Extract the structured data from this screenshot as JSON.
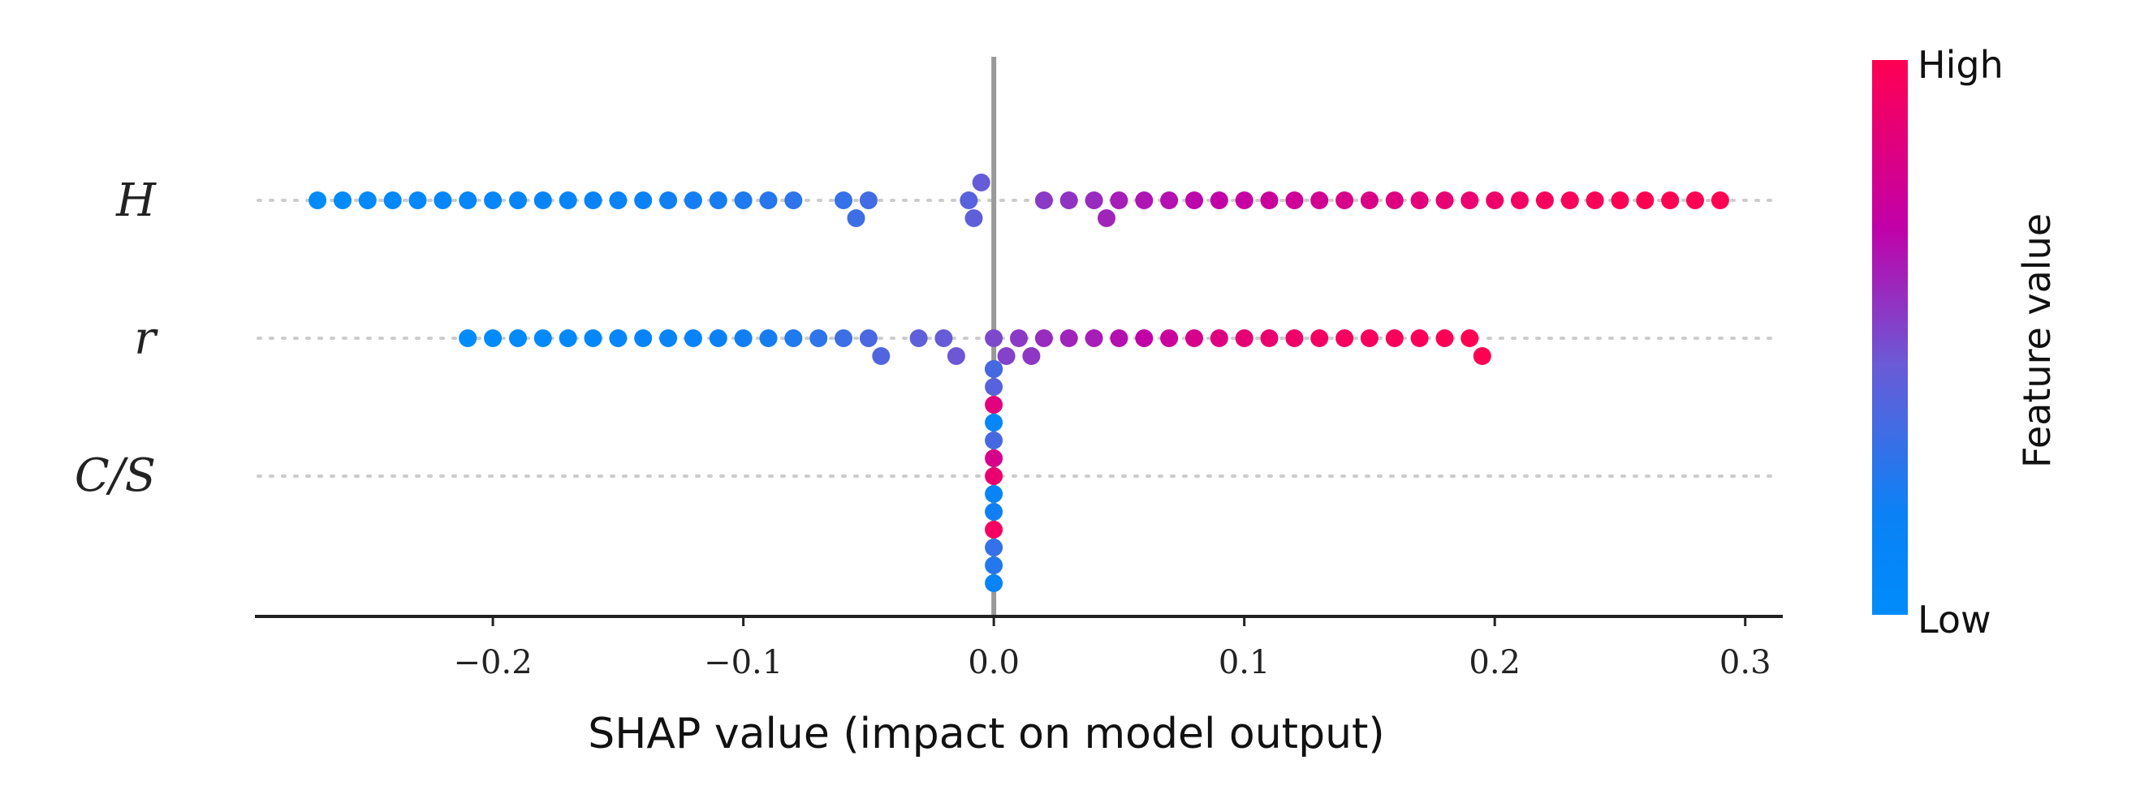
{
  "chart_data": {
    "type": "scatter",
    "subtype": "shap-beeswarm",
    "title": "",
    "xlabel": "SHAP value (impact on model output)",
    "ylabel": "",
    "xlim": [
      -0.295,
      0.315
    ],
    "xticks": [
      -0.2,
      -0.1,
      0.0,
      0.1,
      0.2,
      0.3
    ],
    "xtick_labels": [
      "−0.2",
      "−0.1",
      "0.0",
      "0.1",
      "0.2",
      "0.3"
    ],
    "features": [
      "H",
      "r",
      "C/S"
    ],
    "feature_labels": [
      "H",
      "r",
      "C/S"
    ],
    "colorbar": {
      "title": "Feature value",
      "high_label": "High",
      "low_label": "Low",
      "low_color": "#008bfb",
      "high_color": "#ff0052"
    },
    "series": [
      {
        "name": "H",
        "points": [
          [
            -0.27,
            0.0
          ],
          [
            -0.26,
            0.02
          ],
          [
            -0.25,
            0.05
          ],
          [
            -0.24,
            0.06
          ],
          [
            -0.23,
            0.08
          ],
          [
            -0.22,
            0.09
          ],
          [
            -0.21,
            0.1
          ],
          [
            -0.2,
            0.11
          ],
          [
            -0.19,
            0.12
          ],
          [
            -0.18,
            0.13
          ],
          [
            -0.17,
            0.14
          ],
          [
            -0.16,
            0.16
          ],
          [
            -0.15,
            0.17
          ],
          [
            -0.14,
            0.18
          ],
          [
            -0.13,
            0.2
          ],
          [
            -0.12,
            0.21
          ],
          [
            -0.11,
            0.22
          ],
          [
            -0.1,
            0.24
          ],
          [
            -0.09,
            0.26
          ],
          [
            -0.08,
            0.28
          ],
          [
            -0.06,
            0.3
          ],
          [
            -0.055,
            0.32
          ],
          [
            -0.05,
            0.34
          ],
          [
            -0.01,
            0.4
          ],
          [
            -0.008,
            0.42
          ],
          [
            -0.005,
            0.44
          ],
          [
            0.02,
            0.54
          ],
          [
            0.03,
            0.56
          ],
          [
            0.04,
            0.58
          ],
          [
            0.045,
            0.6
          ],
          [
            0.05,
            0.62
          ],
          [
            0.06,
            0.64
          ],
          [
            0.07,
            0.66
          ],
          [
            0.08,
            0.68
          ],
          [
            0.09,
            0.7
          ],
          [
            0.1,
            0.72
          ],
          [
            0.11,
            0.74
          ],
          [
            0.12,
            0.76
          ],
          [
            0.13,
            0.78
          ],
          [
            0.14,
            0.8
          ],
          [
            0.15,
            0.82
          ],
          [
            0.16,
            0.84
          ],
          [
            0.17,
            0.86
          ],
          [
            0.18,
            0.88
          ],
          [
            0.19,
            0.9
          ],
          [
            0.2,
            0.92
          ],
          [
            0.21,
            0.94
          ],
          [
            0.22,
            0.96
          ],
          [
            0.23,
            0.97
          ],
          [
            0.24,
            0.98
          ],
          [
            0.25,
            0.99
          ],
          [
            0.26,
            1.0
          ],
          [
            0.27,
            1.0
          ],
          [
            0.28,
            1.0
          ],
          [
            0.29,
            1.0
          ]
        ]
      },
      {
        "name": "r",
        "points": [
          [
            -0.21,
            0.0
          ],
          [
            -0.2,
            0.02
          ],
          [
            -0.19,
            0.04
          ],
          [
            -0.18,
            0.05
          ],
          [
            -0.17,
            0.06
          ],
          [
            -0.16,
            0.08
          ],
          [
            -0.15,
            0.1
          ],
          [
            -0.14,
            0.12
          ],
          [
            -0.13,
            0.14
          ],
          [
            -0.12,
            0.16
          ],
          [
            -0.11,
            0.18
          ],
          [
            -0.1,
            0.2
          ],
          [
            -0.09,
            0.22
          ],
          [
            -0.08,
            0.24
          ],
          [
            -0.07,
            0.28
          ],
          [
            -0.06,
            0.32
          ],
          [
            -0.05,
            0.36
          ],
          [
            -0.045,
            0.38
          ],
          [
            -0.03,
            0.42
          ],
          [
            -0.02,
            0.44
          ],
          [
            -0.015,
            0.46
          ],
          [
            0.0,
            0.5
          ],
          [
            0.005,
            0.52
          ],
          [
            0.01,
            0.54
          ],
          [
            0.015,
            0.55
          ],
          [
            0.02,
            0.58
          ],
          [
            0.03,
            0.6
          ],
          [
            0.04,
            0.62
          ],
          [
            0.05,
            0.66
          ],
          [
            0.06,
            0.7
          ],
          [
            0.07,
            0.74
          ],
          [
            0.08,
            0.8
          ],
          [
            0.09,
            0.84
          ],
          [
            0.1,
            0.88
          ],
          [
            0.11,
            0.9
          ],
          [
            0.12,
            0.92
          ],
          [
            0.13,
            0.94
          ],
          [
            0.14,
            0.95
          ],
          [
            0.15,
            0.96
          ],
          [
            0.16,
            0.97
          ],
          [
            0.17,
            0.98
          ],
          [
            0.18,
            0.99
          ],
          [
            0.19,
            1.0
          ],
          [
            0.195,
            1.0
          ]
        ]
      },
      {
        "name": "C/S",
        "points": [
          [
            0.0,
            0.9
          ],
          [
            0.0,
            0.15
          ],
          [
            0.0,
            0.8
          ],
          [
            0.0,
            0.2
          ],
          [
            0.0,
            0.35
          ],
          [
            0.0,
            0.95
          ],
          [
            0.0,
            0.1
          ],
          [
            0.0,
            0.3
          ],
          [
            0.0,
            0.85
          ],
          [
            0.0,
            0.25
          ],
          [
            0.0,
            0.4
          ],
          [
            0.0,
            0.15
          ],
          [
            0.0,
            0.9
          ],
          [
            0.0,
            0.3
          ],
          [
            0.0,
            0.35
          ]
        ]
      }
    ]
  }
}
